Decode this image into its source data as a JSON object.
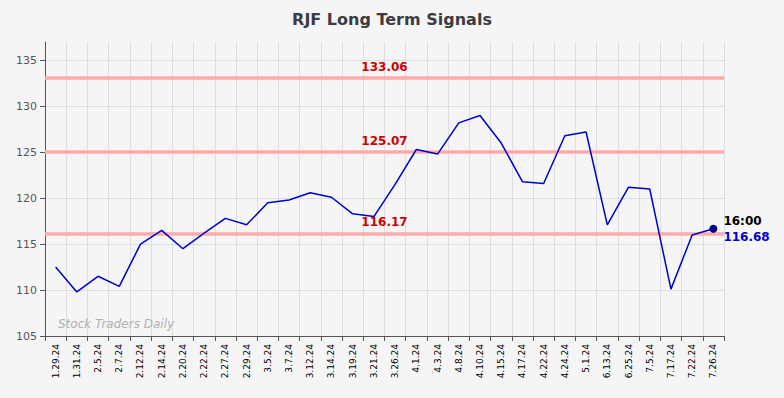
{
  "chart_data": {
    "type": "line",
    "title": "RJF Long Term Signals",
    "categories": [
      "1.29.24",
      "1.31.24",
      "2.5.24",
      "2.7.24",
      "2.12.24",
      "2.14.24",
      "2.20.24",
      "2.22.24",
      "2.27.24",
      "2.29.24",
      "3.5.24",
      "3.7.24",
      "3.12.24",
      "3.14.24",
      "3.19.24",
      "3.21.24",
      "3.26.24",
      "4.1.24",
      "4.3.24",
      "4.8.24",
      "4.10.24",
      "4.15.24",
      "4.17.24",
      "4.22.24",
      "4.24.24",
      "5.1.24",
      "6.13.24",
      "6.25.24",
      "7.5.24",
      "7.17.24",
      "7.22.24",
      "7.26.24"
    ],
    "values": [
      112.5,
      109.8,
      111.5,
      110.4,
      115.0,
      116.5,
      114.5,
      116.2,
      117.8,
      117.1,
      119.5,
      119.8,
      120.6,
      120.1,
      118.3,
      118.0,
      121.5,
      125.3,
      124.8,
      128.2,
      129.0,
      126.0,
      121.8,
      121.6,
      126.8,
      127.2,
      117.1,
      121.2,
      121.0,
      110.1,
      116.0,
      116.68
    ],
    "color": "#0000cc",
    "ylim": [
      105,
      137
    ],
    "yticks": [
      105,
      110,
      115,
      120,
      125,
      130,
      135
    ],
    "grid": true,
    "background": "#f5f5f5",
    "reference_lines": [
      {
        "value": 133.06,
        "label": "133.06",
        "color": "#ffaaaa",
        "label_color": "#cc0000"
      },
      {
        "value": 125.07,
        "label": "125.07",
        "color": "#ffaaaa",
        "label_color": "#cc0000"
      },
      {
        "value": 116.17,
        "label": "116.17",
        "color": "#ffaaaa",
        "label_color": "#cc0000"
      }
    ],
    "end_marker": {
      "color": "#00008b",
      "marker": "circle"
    },
    "annotations": [
      {
        "text": "16:00",
        "color": "black"
      },
      {
        "text": "116.68",
        "color": "#0000cc"
      }
    ],
    "watermark": "Stock Traders Daily"
  }
}
